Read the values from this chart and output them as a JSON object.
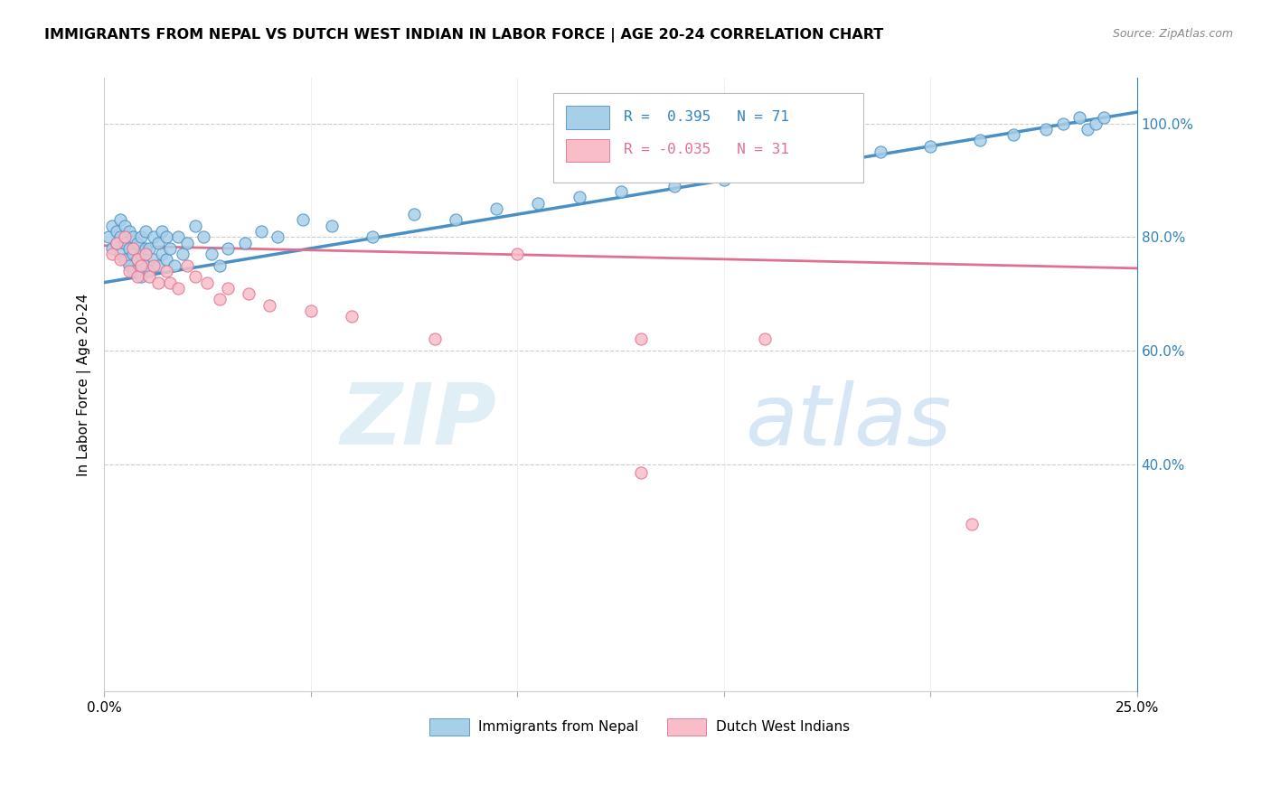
{
  "title": "IMMIGRANTS FROM NEPAL VS DUTCH WEST INDIAN IN LABOR FORCE | AGE 20-24 CORRELATION CHART",
  "source": "Source: ZipAtlas.com",
  "ylabel": "In Labor Force | Age 20-24",
  "x_lim": [
    0.0,
    0.25
  ],
  "y_lim": [
    0.0,
    1.08
  ],
  "nepal_R": 0.395,
  "nepal_N": 71,
  "dwi_R": -0.035,
  "dwi_N": 31,
  "nepal_color": "#a8cfe8",
  "nepal_color_dark": "#4a90c4",
  "dwi_color": "#f9bdc8",
  "dwi_color_dark": "#e07090",
  "watermark_zip": "ZIP",
  "watermark_atlas": "atlas",
  "legend_labels": [
    "Immigrants from Nepal",
    "Dutch West Indians"
  ],
  "nepal_trend": [
    0.72,
    1.02
  ],
  "dwi_trend": [
    0.785,
    0.745
  ],
  "nepal_x": [
    0.001,
    0.002,
    0.002,
    0.003,
    0.003,
    0.004,
    0.004,
    0.004,
    0.005,
    0.005,
    0.005,
    0.006,
    0.006,
    0.006,
    0.007,
    0.007,
    0.007,
    0.008,
    0.008,
    0.009,
    0.009,
    0.009,
    0.01,
    0.01,
    0.01,
    0.011,
    0.011,
    0.012,
    0.012,
    0.013,
    0.013,
    0.014,
    0.014,
    0.015,
    0.015,
    0.016,
    0.017,
    0.018,
    0.019,
    0.02,
    0.022,
    0.024,
    0.026,
    0.028,
    0.03,
    0.034,
    0.038,
    0.042,
    0.048,
    0.055,
    0.065,
    0.075,
    0.085,
    0.095,
    0.105,
    0.115,
    0.125,
    0.138,
    0.15,
    0.162,
    0.175,
    0.188,
    0.2,
    0.212,
    0.22,
    0.228,
    0.232,
    0.236,
    0.238,
    0.24,
    0.242
  ],
  "nepal_y": [
    0.8,
    0.82,
    0.78,
    0.81,
    0.79,
    0.83,
    0.77,
    0.8,
    0.76,
    0.79,
    0.82,
    0.75,
    0.78,
    0.81,
    0.74,
    0.77,
    0.8,
    0.76,
    0.79,
    0.73,
    0.77,
    0.8,
    0.75,
    0.78,
    0.81,
    0.74,
    0.78,
    0.76,
    0.8,
    0.75,
    0.79,
    0.77,
    0.81,
    0.76,
    0.8,
    0.78,
    0.75,
    0.8,
    0.77,
    0.79,
    0.82,
    0.8,
    0.77,
    0.75,
    0.78,
    0.79,
    0.81,
    0.8,
    0.83,
    0.82,
    0.8,
    0.84,
    0.83,
    0.85,
    0.86,
    0.87,
    0.88,
    0.89,
    0.9,
    0.92,
    0.93,
    0.95,
    0.96,
    0.97,
    0.98,
    0.99,
    1.0,
    1.01,
    0.99,
    1.0,
    1.01
  ],
  "dwi_x": [
    0.002,
    0.003,
    0.004,
    0.005,
    0.006,
    0.007,
    0.008,
    0.008,
    0.009,
    0.01,
    0.011,
    0.012,
    0.013,
    0.015,
    0.016,
    0.018,
    0.02,
    0.022,
    0.025,
    0.028,
    0.03,
    0.035,
    0.04,
    0.05,
    0.06,
    0.08,
    0.1,
    0.13,
    0.16,
    0.13,
    0.21
  ],
  "dwi_y": [
    0.77,
    0.79,
    0.76,
    0.8,
    0.74,
    0.78,
    0.76,
    0.73,
    0.75,
    0.77,
    0.73,
    0.75,
    0.72,
    0.74,
    0.72,
    0.71,
    0.75,
    0.73,
    0.72,
    0.69,
    0.71,
    0.7,
    0.68,
    0.67,
    0.66,
    0.62,
    0.77,
    0.62,
    0.62,
    0.385,
    0.295
  ]
}
